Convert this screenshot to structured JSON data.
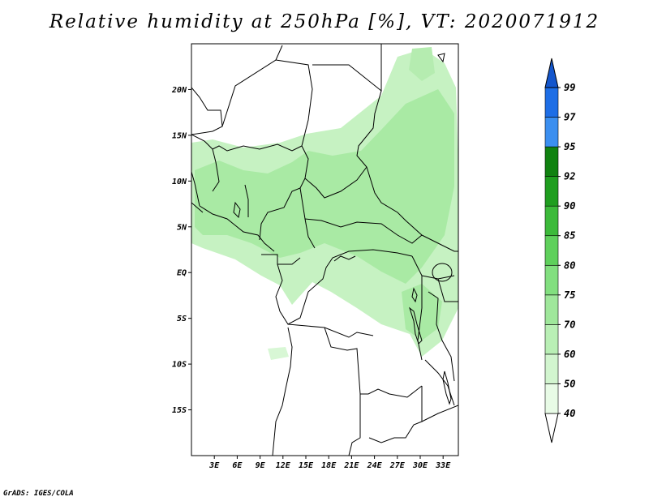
{
  "title": "Relative humidity at 250hPa [%], VT: 2020071912",
  "credit": "GrADS: IGES/COLA",
  "map": {
    "lon_range": [
      0,
      35
    ],
    "lat_range": [
      -20,
      25
    ],
    "lat_ticks": [
      {
        "value": 20,
        "label": "20N"
      },
      {
        "value": 15,
        "label": "15N"
      },
      {
        "value": 10,
        "label": "10N"
      },
      {
        "value": 5,
        "label": "5N"
      },
      {
        "value": 0,
        "label": "EQ"
      },
      {
        "value": -5,
        "label": "5S"
      },
      {
        "value": -10,
        "label": "10S"
      },
      {
        "value": -15,
        "label": "15S"
      }
    ],
    "lon_ticks": [
      {
        "value": 3,
        "label": "3E"
      },
      {
        "value": 6,
        "label": "6E"
      },
      {
        "value": 9,
        "label": "9E"
      },
      {
        "value": 12,
        "label": "12E"
      },
      {
        "value": 15,
        "label": "15E"
      },
      {
        "value": 18,
        "label": "18E"
      },
      {
        "value": 21,
        "label": "21E"
      },
      {
        "value": 24,
        "label": "24E"
      },
      {
        "value": 27,
        "label": "27E"
      },
      {
        "value": 30,
        "label": "30E"
      },
      {
        "value": 33,
        "label": "33E"
      }
    ]
  },
  "colorbar": {
    "labels": [
      "40",
      "50",
      "60",
      "70",
      "75",
      "80",
      "85",
      "90",
      "92",
      "95",
      "97",
      "99"
    ],
    "colors": [
      "#ffffff",
      "#e8fbe6",
      "#d2f5cf",
      "#b9efb5",
      "#9fe79b",
      "#82df7f",
      "#5fd05c",
      "#3cba3a",
      "#1f9e1f",
      "#108210",
      "#3b8ff0",
      "#1e6ee6",
      "#1456cc"
    ]
  }
}
